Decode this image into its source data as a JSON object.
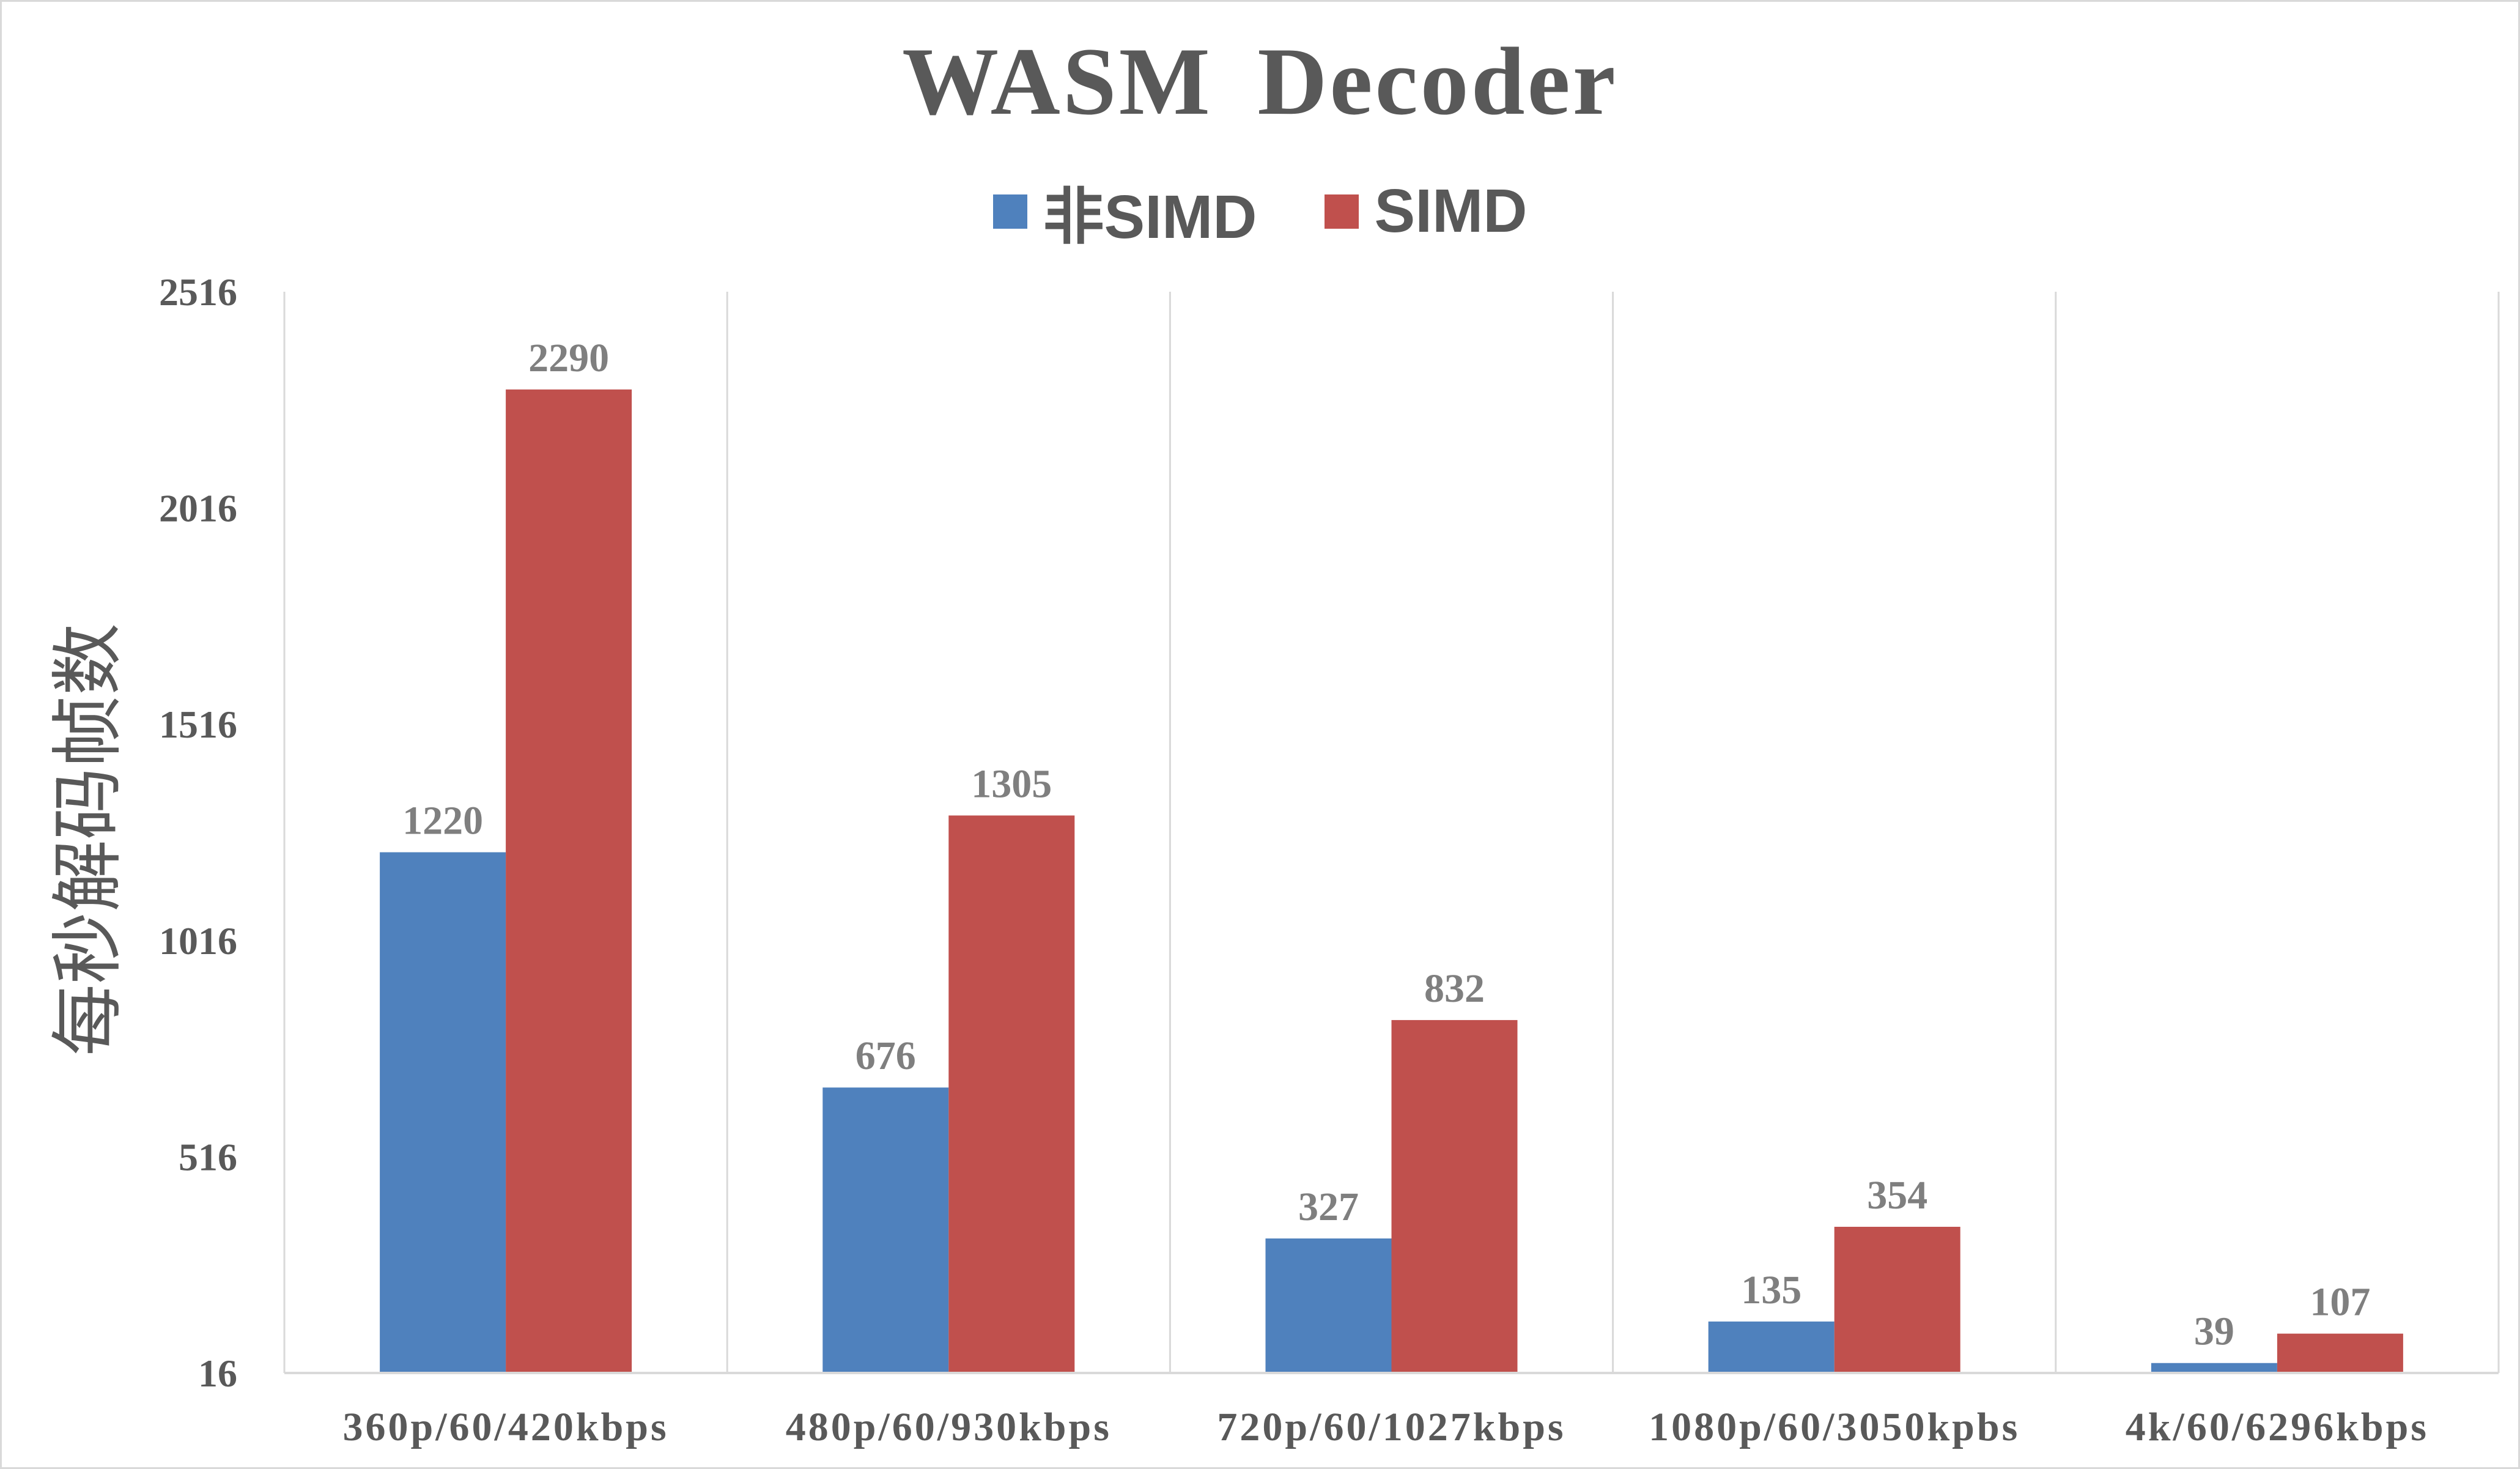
{
  "chart_data": {
    "type": "bar",
    "title": "WASM  Decoder",
    "ylabel": "每秒解码帧数",
    "xlabel": "",
    "categories": [
      "360p/60/420kbps",
      "480p/60/930kbps",
      "720p/60/1027kbps",
      "1080p/60/3050kpbs",
      "4k/60/6296kbps"
    ],
    "series": [
      {
        "name": "非SIMD",
        "color": "#4F81BD",
        "values": [
          1220,
          676,
          327,
          135,
          39
        ]
      },
      {
        "name": "SIMD",
        "color": "#C0504D",
        "values": [
          2290,
          1305,
          832,
          354,
          107
        ]
      }
    ],
    "ylim": [
      16,
      2516
    ],
    "yticks": [
      "16",
      "516",
      "1016",
      "1516",
      "2016",
      "2516"
    ],
    "grid": "vertical category separators",
    "legend_position": "top-center"
  }
}
